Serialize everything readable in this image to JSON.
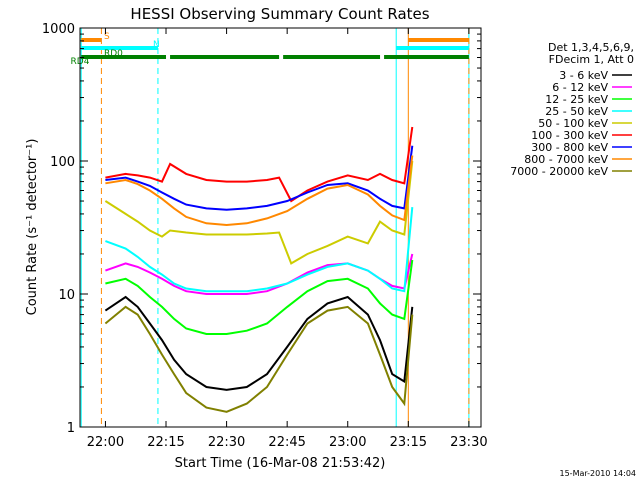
{
  "chart_data": {
    "type": "line",
    "title": "HESSI Observing Summary Count Rates",
    "xlabel": "Start Time (16-Mar-08 21:53:42)",
    "ylabel": "Count Rate (s⁻¹ detector⁻¹)",
    "y_scale": "log",
    "ylim": [
      1,
      1000
    ],
    "xlim": [
      "21:53:42",
      "23:33:00"
    ],
    "x_ticks": [
      "22:00",
      "22:15",
      "22:30",
      "22:45",
      "23:00",
      "23:15",
      "23:30"
    ],
    "y_ticks": [
      "1",
      "10",
      "100",
      "1000"
    ],
    "legend": {
      "position": "right",
      "header": [
        "Det 1,3,4,5,6,9,",
        "FDecim 1, Att 0"
      ]
    },
    "series": [
      {
        "name": "3 - 6 keV",
        "color": "#000000",
        "x": [
          "22:00",
          "22:05",
          "22:08",
          "22:11",
          "22:14",
          "22:17",
          "22:20",
          "22:25",
          "22:30",
          "22:35",
          "22:40",
          "22:45",
          "22:50",
          "22:55",
          "23:00",
          "23:05",
          "23:08",
          "23:11",
          "23:14",
          "23:16"
        ],
        "y": [
          7.5,
          9.5,
          8,
          6,
          4.5,
          3.2,
          2.5,
          2,
          1.9,
          2,
          2.5,
          4,
          6.5,
          8.5,
          9.5,
          7,
          4.5,
          2.5,
          2.2,
          8
        ]
      },
      {
        "name": "6 - 12 keV",
        "color": "#ff00ff",
        "x": [
          "22:00",
          "22:05",
          "22:08",
          "22:11",
          "22:14",
          "22:17",
          "22:20",
          "22:25",
          "22:30",
          "22:35",
          "22:40",
          "22:45",
          "22:50",
          "22:55",
          "23:00",
          "23:05",
          "23:08",
          "23:11",
          "23:14",
          "23:16"
        ],
        "y": [
          15,
          17,
          16,
          14.5,
          13,
          11.5,
          10.5,
          10,
          10,
          10,
          10.5,
          12,
          14.5,
          16.5,
          17,
          15,
          13,
          11.5,
          11,
          20
        ]
      },
      {
        "name": "12 - 25 keV",
        "color": "#00ff00",
        "x": [
          "22:00",
          "22:05",
          "22:08",
          "22:11",
          "22:14",
          "22:17",
          "22:20",
          "22:25",
          "22:30",
          "22:35",
          "22:40",
          "22:45",
          "22:50",
          "22:55",
          "23:00",
          "23:05",
          "23:08",
          "23:11",
          "23:14",
          "23:16"
        ],
        "y": [
          12,
          13,
          11.5,
          9.5,
          8,
          6.5,
          5.5,
          5,
          5,
          5.3,
          6,
          8,
          10.5,
          12.5,
          13,
          11,
          8.5,
          7,
          6.5,
          18
        ]
      },
      {
        "name": "25 - 50 keV",
        "color": "#00ffff",
        "x": [
          "22:00",
          "22:05",
          "22:08",
          "22:11",
          "22:14",
          "22:17",
          "22:20",
          "22:25",
          "22:30",
          "22:35",
          "22:40",
          "22:45",
          "22:50",
          "22:55",
          "23:00",
          "23:05",
          "23:08",
          "23:11",
          "23:14",
          "23:16"
        ],
        "y": [
          25,
          22,
          19,
          16,
          14,
          12,
          11,
          10.5,
          10.5,
          10.5,
          11,
          12,
          14,
          16,
          17,
          15,
          13,
          11,
          10.5,
          45
        ]
      },
      {
        "name": "50 - 100 keV",
        "color": "#cccc00",
        "x": [
          "22:00",
          "22:05",
          "22:08",
          "22:11",
          "22:14",
          "22:16",
          "22:20",
          "22:25",
          "22:30",
          "22:35",
          "22:40",
          "22:43",
          "22:46",
          "22:50",
          "22:55",
          "23:00",
          "23:05",
          "23:08",
          "23:11",
          "23:14",
          "23:16"
        ],
        "y": [
          50,
          40,
          35,
          30,
          27,
          30,
          29,
          28,
          28,
          28,
          28.5,
          29,
          17,
          20,
          23,
          27,
          24,
          35,
          30,
          28,
          100
        ]
      },
      {
        "name": "100 - 300 keV",
        "color": "#ff0000",
        "x": [
          "22:00",
          "22:05",
          "22:08",
          "22:11",
          "22:14",
          "22:16",
          "22:20",
          "22:25",
          "22:30",
          "22:35",
          "22:40",
          "22:43",
          "22:46",
          "22:50",
          "22:55",
          "23:00",
          "23:05",
          "23:08",
          "23:11",
          "23:14",
          "23:16"
        ],
        "y": [
          75,
          80,
          78,
          75,
          70,
          95,
          80,
          72,
          70,
          70,
          72,
          75,
          50,
          60,
          70,
          78,
          72,
          80,
          72,
          68,
          180
        ]
      },
      {
        "name": "300 - 800 keV",
        "color": "#0000ff",
        "x": [
          "22:00",
          "22:05",
          "22:08",
          "22:11",
          "22:14",
          "22:17",
          "22:20",
          "22:25",
          "22:30",
          "22:35",
          "22:40",
          "22:45",
          "22:50",
          "22:55",
          "23:00",
          "23:05",
          "23:08",
          "23:11",
          "23:14",
          "23:16"
        ],
        "y": [
          72,
          75,
          70,
          65,
          58,
          52,
          47,
          44,
          43,
          44,
          46,
          50,
          58,
          66,
          68,
          60,
          52,
          46,
          44,
          130
        ]
      },
      {
        "name": "800 - 7000 keV",
        "color": "#ff8800",
        "x": [
          "22:00",
          "22:05",
          "22:08",
          "22:11",
          "22:14",
          "22:17",
          "22:20",
          "22:25",
          "22:30",
          "22:35",
          "22:40",
          "22:45",
          "22:50",
          "22:55",
          "23:00",
          "23:05",
          "23:08",
          "23:11",
          "23:14",
          "23:16"
        ],
        "y": [
          68,
          72,
          67,
          60,
          52,
          44,
          38,
          34,
          33,
          34,
          37,
          42,
          52,
          62,
          66,
          56,
          46,
          39,
          36,
          110
        ]
      },
      {
        "name": "7000 - 20000 keV",
        "color": "#808000",
        "x": [
          "22:00",
          "22:05",
          "22:08",
          "22:11",
          "22:14",
          "22:17",
          "22:20",
          "22:25",
          "22:30",
          "22:35",
          "22:40",
          "22:45",
          "22:50",
          "22:55",
          "23:00",
          "23:05",
          "23:08",
          "23:11",
          "23:14",
          "23:16"
        ],
        "y": [
          6,
          8,
          7,
          5,
          3.5,
          2.5,
          1.8,
          1.4,
          1.3,
          1.5,
          2,
          3.5,
          6,
          7.5,
          8,
          6,
          3.5,
          2,
          1.5,
          7
        ]
      }
    ],
    "flag_bars": [
      {
        "label": "S",
        "color": "#ff8800",
        "segments": [
          [
            "21:54",
            "21:59"
          ],
          [
            "23:15",
            "23:30"
          ]
        ]
      },
      {
        "label": "N",
        "color": "#00ffff",
        "segments": [
          [
            "21:54",
            "22:13"
          ],
          [
            "23:12",
            "23:30"
          ]
        ]
      },
      {
        "label": "RD0",
        "color": "#008000",
        "segments": [
          [
            "21:54",
            "22:15"
          ],
          [
            "22:16",
            "22:43"
          ],
          [
            "22:44",
            "23:08"
          ],
          [
            "23:09",
            "23:30"
          ]
        ]
      },
      {
        "label": "RD4",
        "color": "#008000",
        "segments": []
      }
    ],
    "vertical_markers": [
      {
        "x": "21:54",
        "color": "#00ffff",
        "style": "solid"
      },
      {
        "x": "21:59",
        "color": "#ff8800",
        "style": "dashed"
      },
      {
        "x": "22:13",
        "color": "#00ffff",
        "style": "dashed"
      },
      {
        "x": "23:12",
        "color": "#00ffff",
        "style": "solid"
      },
      {
        "x": "23:15",
        "color": "#ff8800",
        "style": "solid"
      },
      {
        "x": "23:30",
        "color": "#00ffff",
        "style": "solid"
      },
      {
        "x": "23:30",
        "color": "#ff8800",
        "style": "dashed"
      }
    ]
  },
  "footer": {
    "timestamp": "15-Mar-2010 14:04"
  }
}
